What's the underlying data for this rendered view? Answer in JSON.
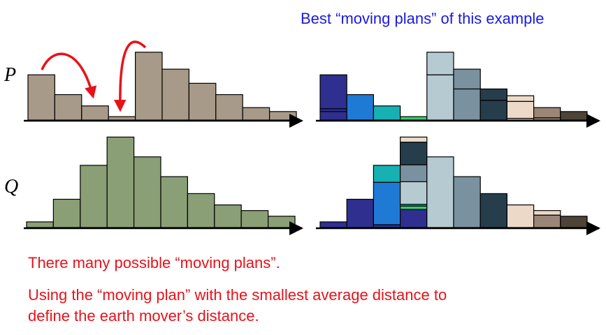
{
  "header": {
    "title": "Best “moving plans” of this example"
  },
  "labels": {
    "p": "P",
    "q": "Q"
  },
  "captions": {
    "line1": "There many possible “moving plans”.",
    "line2": "Using the “moving plan” with the smallest average distance to",
    "line3": "define the earth mover’s distance."
  },
  "colors": {
    "p_bar": "#a89a88",
    "q_bar": "#8a9f76",
    "arrow": "#e8121a",
    "text_red": "#e8121a",
    "text_blue": "#1a1adf",
    "palette": [
      "#2e2f8f",
      "#1f7ad6",
      "#17b0b3",
      "#2ecf6a",
      "#b5cad1",
      "#7a919f",
      "#263d4c",
      "#ecd9c8",
      "#9a8676",
      "#4d4336"
    ]
  },
  "distributions": {
    "p": [
      8,
      4.5,
      2.5,
      0.6,
      12,
      9,
      6.5,
      4.5,
      2.2,
      1.5
    ],
    "q": [
      1,
      5,
      11,
      16,
      12.5,
      9,
      6,
      4,
      3,
      2
    ]
  },
  "plans": {
    "p_stacks": [
      [
        {
          "c": 0,
          "v": 1.5
        },
        {
          "c": 0,
          "v": 0.5
        },
        {
          "c": 0,
          "v": 6
        }
      ],
      [
        {
          "c": 1,
          "v": 4.5
        }
      ],
      [
        {
          "c": 2,
          "v": 2.5
        }
      ],
      [
        {
          "c": 3,
          "v": 0.6
        }
      ],
      [
        {
          "c": 4,
          "v": 8
        },
        {
          "c": 4,
          "v": 4
        }
      ],
      [
        {
          "c": 5,
          "v": 5.5
        },
        {
          "c": 5,
          "v": 3.5
        }
      ],
      [
        {
          "c": 6,
          "v": 3.5
        },
        {
          "c": 6,
          "v": 2
        }
      ],
      [
        {
          "c": 7,
          "v": 0.3
        },
        {
          "c": 7,
          "v": 3
        },
        {
          "c": 7,
          "v": 1
        }
      ],
      [
        {
          "c": 8,
          "v": 0.4
        },
        {
          "c": 8,
          "v": 1.8
        }
      ],
      [
        {
          "c": 9,
          "v": 1.5
        }
      ]
    ],
    "q_stacks": [
      [
        {
          "c": 0,
          "v": 1
        }
      ],
      [
        {
          "c": 0,
          "v": 5
        }
      ],
      [
        {
          "c": 0,
          "v": 0.5
        },
        {
          "c": 1,
          "v": 7.5
        },
        {
          "c": 2,
          "v": 3
        }
      ],
      [
        {
          "c": 0,
          "v": 3.2
        },
        {
          "c": 3,
          "v": 0.6
        },
        {
          "c": 2,
          "v": 0.3
        },
        {
          "c": 4,
          "v": 4
        },
        {
          "c": 5,
          "v": 3
        },
        {
          "c": 6,
          "v": 4
        },
        {
          "c": 7,
          "v": 0.9
        }
      ],
      [
        {
          "c": 4,
          "v": 12.5
        }
      ],
      [
        {
          "c": 5,
          "v": 9
        }
      ],
      [
        {
          "c": 6,
          "v": 6
        }
      ],
      [
        {
          "c": 7,
          "v": 4
        }
      ],
      [
        {
          "c": 8,
          "v": 2.2
        },
        {
          "c": 7,
          "v": 0.8
        }
      ],
      [
        {
          "c": 9,
          "v": 2
        }
      ]
    ]
  }
}
